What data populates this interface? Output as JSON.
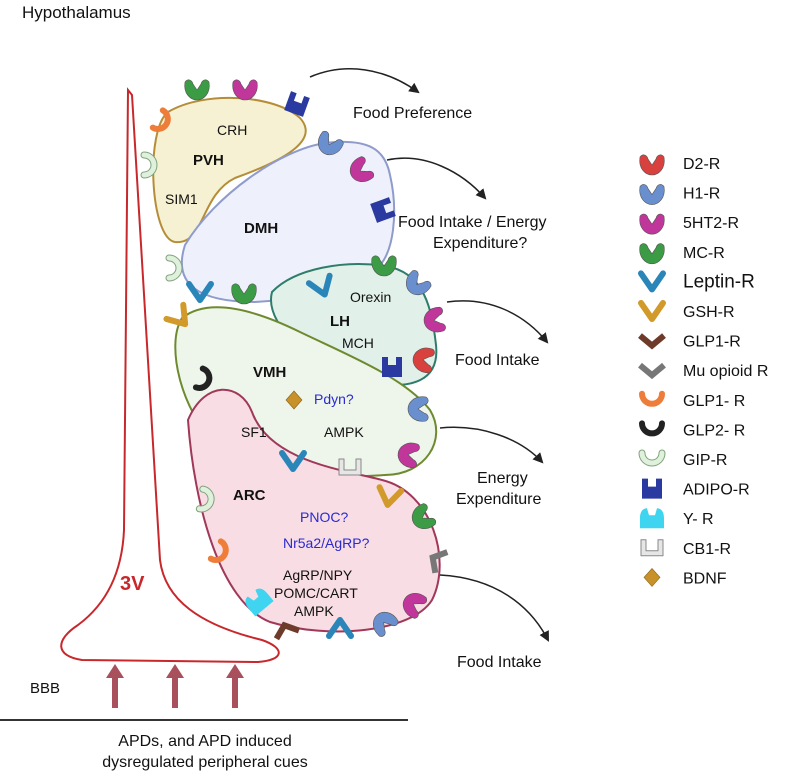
{
  "title": "Hypothalamus",
  "regions": {
    "pvh": {
      "label": "PVH",
      "markers": [
        "CRH",
        "SIM1"
      ]
    },
    "dmh": {
      "label": "DMH"
    },
    "lh": {
      "label": "LH",
      "markers": [
        "Orexin",
        "MCH"
      ]
    },
    "vmh": {
      "label": "VMH",
      "markers": [
        "Pdyn?",
        "SF1",
        "AMPK"
      ]
    },
    "arc": {
      "label": "ARC",
      "markers": [
        "PNOC?",
        "Nr5a2/AgRP?",
        "AgRP/NPY",
        "POMC/CART",
        "AMPK"
      ]
    }
  },
  "ventricle_label": "3V",
  "bbb_label": "BBB",
  "outcomes": [
    "Food Preference",
    "Food Intake / Energy",
    "Expenditure?",
    "Food Intake",
    "Energy",
    "Expenditure",
    "Food Intake"
  ],
  "bottom_caption": [
    "APDs, and APD induced",
    "dysregulated peripheral cues"
  ],
  "colors": {
    "ventricle": "#c8282c",
    "bbb_arrow": "#a8505c",
    "blue_text": "#2a2ad0"
  },
  "legend": [
    {
      "label": "D2-R",
      "shape": "crown",
      "color": "#d9413f"
    },
    {
      "label": "H1-R",
      "shape": "crown",
      "color": "#6a8fcf"
    },
    {
      "label": "5HT2-R",
      "shape": "crown",
      "color": "#c0369a"
    },
    {
      "label": "MC-R",
      "shape": "crown",
      "color": "#3c9b45"
    },
    {
      "label": "Leptin-R",
      "shape": "v-round",
      "color": "#2a86b8"
    },
    {
      "label": "GSH-R",
      "shape": "v-round",
      "color": "#d29a2a"
    },
    {
      "label": "GLP1-R",
      "shape": "chevron",
      "color": "#6e3b2a"
    },
    {
      "label": "Mu opioid R",
      "shape": "chevron",
      "color": "#777777"
    },
    {
      "label": "GLP1- R",
      "shape": "arc",
      "color": "#ee7d3a"
    },
    {
      "label": "GLP2- R",
      "shape": "arc",
      "color": "#222222"
    },
    {
      "label": "GIP-R",
      "shape": "arc-outline",
      "color": "#dff0dc"
    },
    {
      "label": "ADIPO-R",
      "shape": "notch-square",
      "color": "#2b3aa0"
    },
    {
      "label": "Y- R",
      "shape": "notch-dome",
      "color": "#3fd4f0"
    },
    {
      "label": "CB1-R",
      "shape": "bracket",
      "color": "#e6e6e6"
    },
    {
      "label": "BDNF",
      "shape": "diamond",
      "color": "#c8912a"
    }
  ]
}
